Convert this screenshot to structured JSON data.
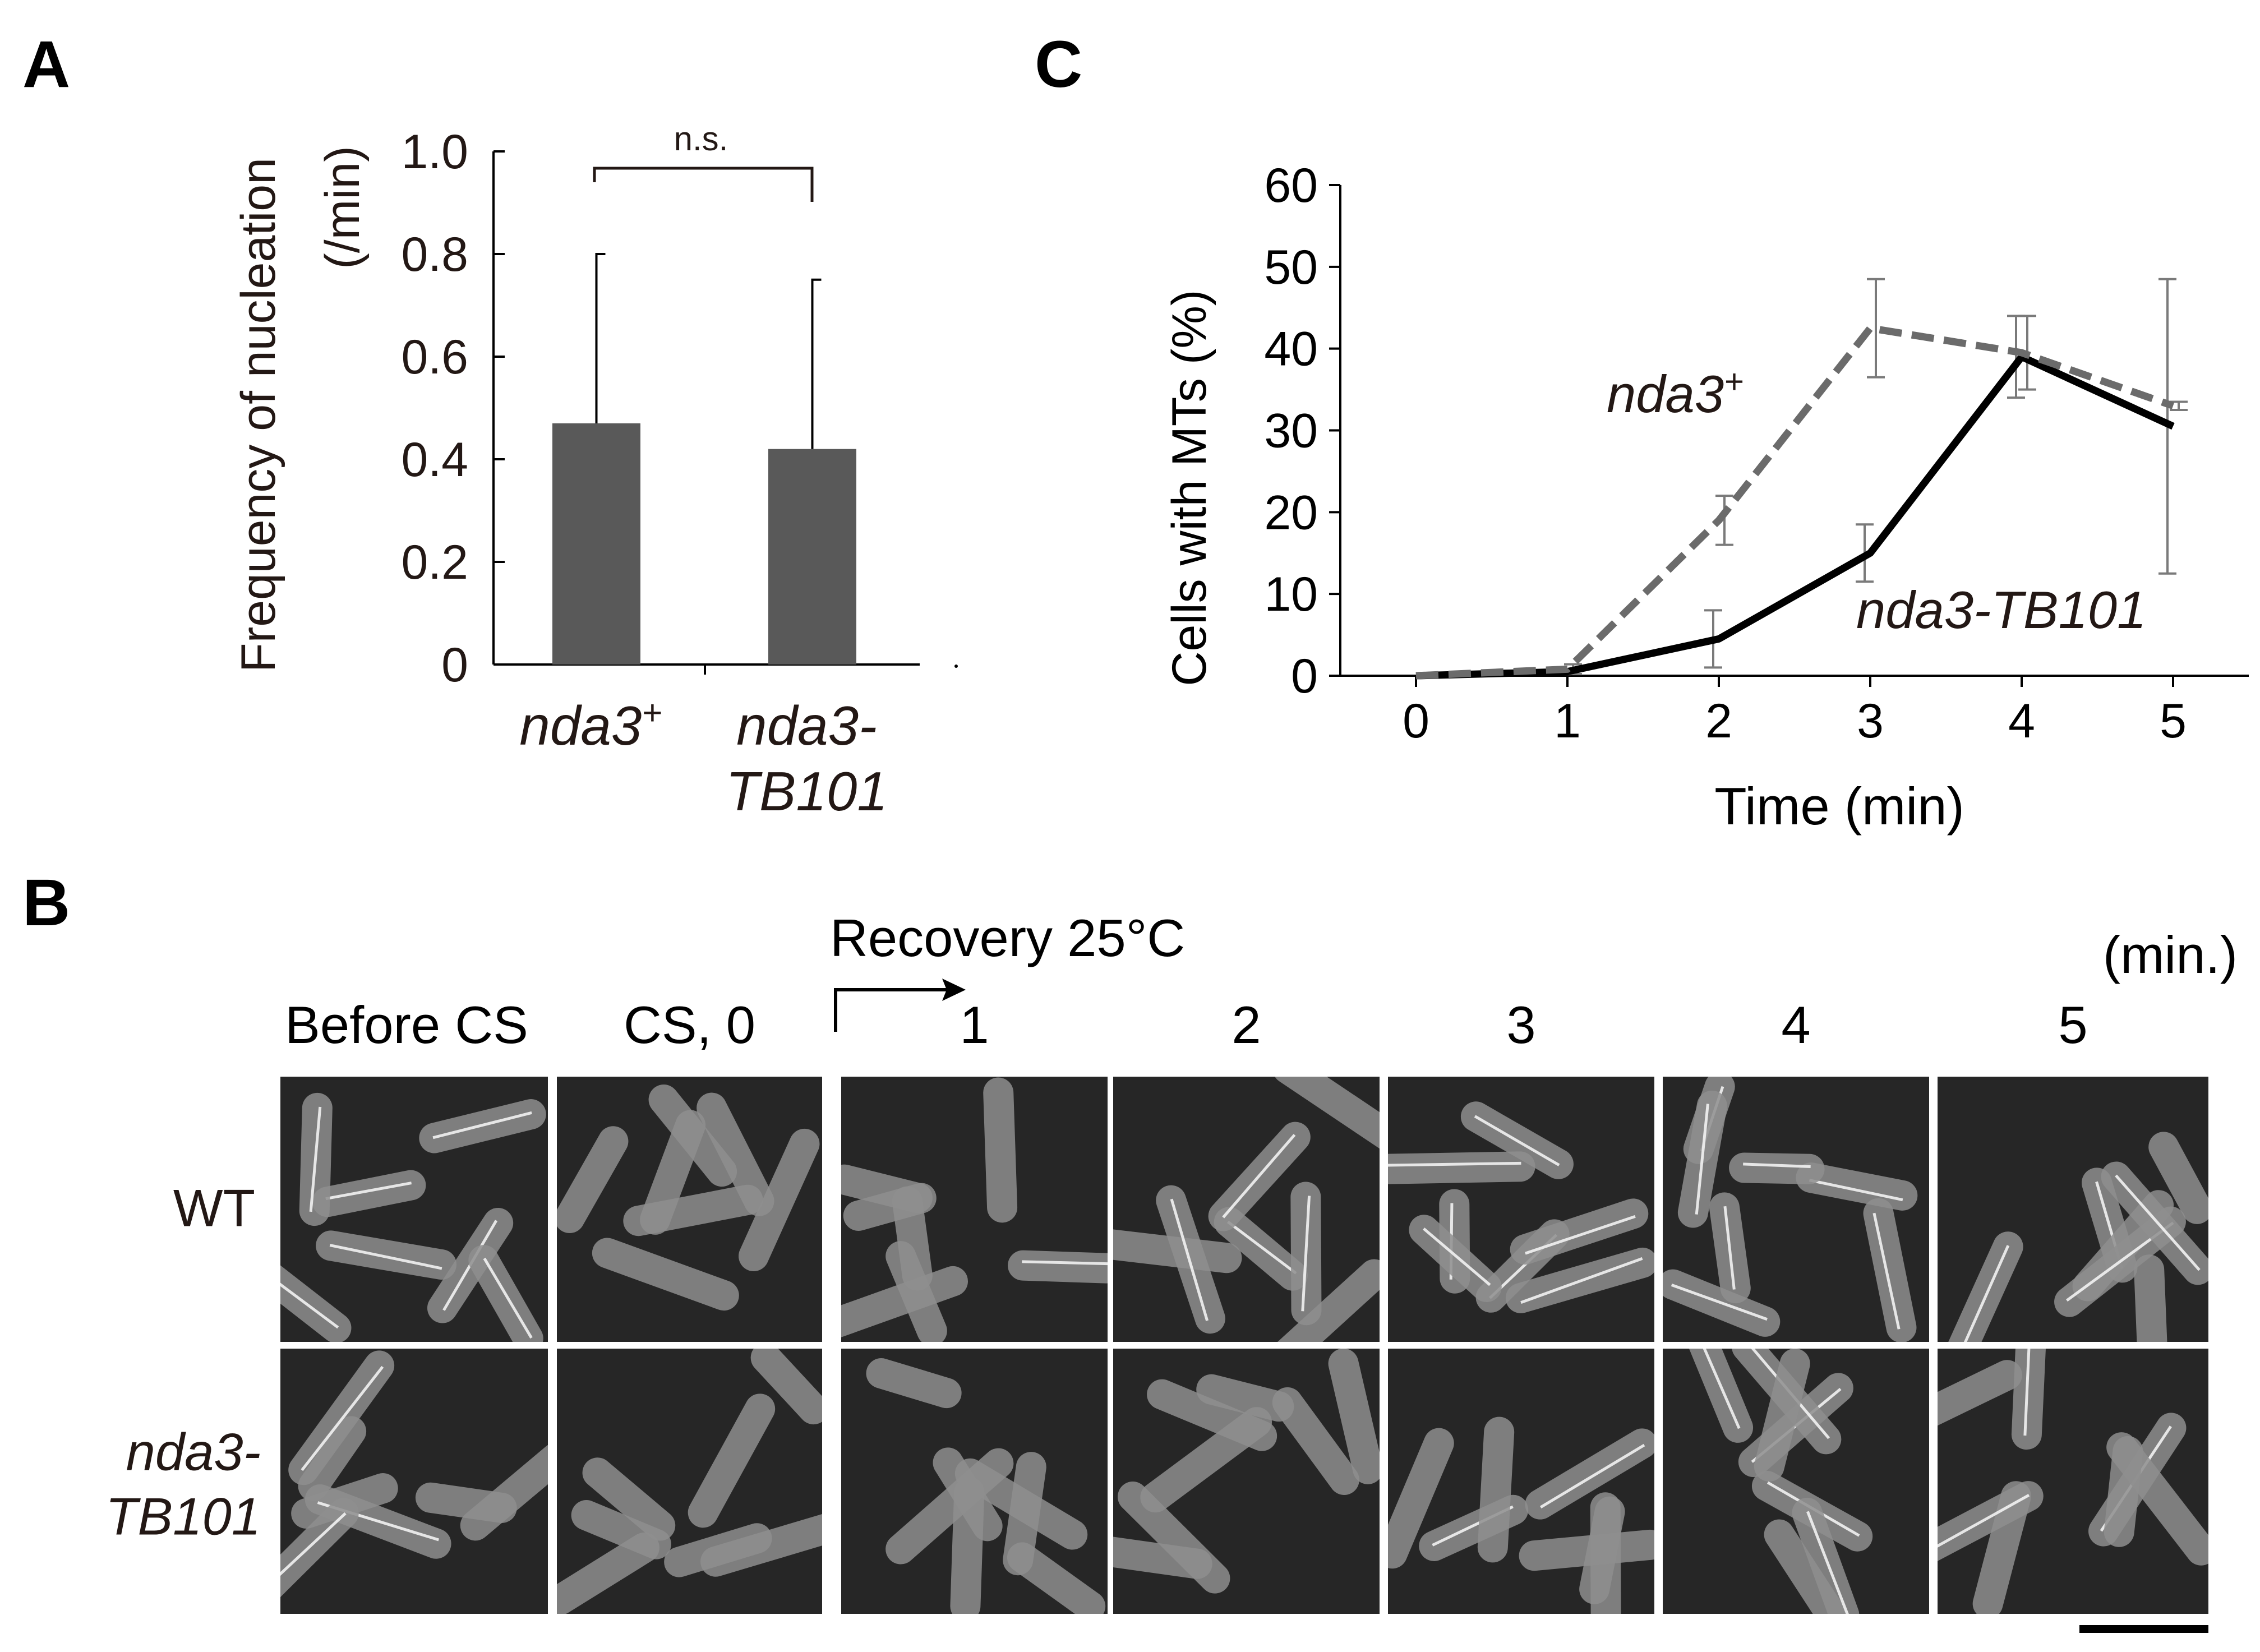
{
  "panel_letters": {
    "a": "A",
    "b": "B",
    "c": "C"
  },
  "colors": {
    "bar": "#595959",
    "text": "#231815",
    "series_wt": "#6b6b6b",
    "series_mut": "#000000",
    "errbar": "#7a7a7a",
    "cell_bg": "#262626",
    "cell_fill": "#8e8e8e",
    "cell_mt": "#f2f2f2"
  },
  "chart_data": [
    {
      "panel": "A",
      "type": "bar",
      "ylabel": "Frequency of nucleation",
      "ylabel_unit": "(/min)",
      "categories": [
        {
          "main": "nda3",
          "sup": "+",
          "line2": ""
        },
        {
          "main": "nda3-",
          "sup": "",
          "line2": "TB101"
        }
      ],
      "values": [
        0.47,
        0.42
      ],
      "errors": [
        0.33,
        0.33
      ],
      "ylim": [
        0,
        1.0
      ],
      "yticks": [
        "0",
        "0.2",
        "0.4",
        "0.6",
        "0.8",
        "1.0"
      ],
      "significance": "n.s.",
      "grid": false
    },
    {
      "panel": "C",
      "type": "line",
      "xlabel": "Time (min)",
      "ylabel": "Cells with MTs (%)",
      "x": [
        0,
        1,
        2,
        3,
        4,
        5
      ],
      "xlim": [
        -0.5,
        5.5
      ],
      "ylim": [
        0,
        60
      ],
      "yticks": [
        "0",
        "10",
        "20",
        "30",
        "40",
        "50",
        "60"
      ],
      "xticks": [
        "0",
        "1",
        "2",
        "3",
        "4",
        "5"
      ],
      "grid": false,
      "series": [
        {
          "name": "nda3",
          "name_sup": "+",
          "style": "dashed",
          "values": [
            0,
            0.8,
            19,
            42.5,
            39.5,
            33
          ],
          "errors": [
            0,
            0.6,
            3,
            6,
            4.5,
            0.5
          ]
        },
        {
          "name": "nda3-TB101",
          "name_sup": "",
          "style": "solid",
          "values": [
            0,
            0.5,
            4.5,
            15,
            39,
            30.5
          ],
          "errors": [
            0,
            0.3,
            3.5,
            3.5,
            5,
            18
          ]
        }
      ]
    }
  ],
  "panel_b": {
    "recovery_label": "Recovery 25°C",
    "unit_label": "(min.)",
    "column_labels": [
      "Before CS",
      "CS, 0",
      "1",
      "2",
      "3",
      "4",
      "5"
    ],
    "rows": [
      {
        "label": "WT",
        "label_line2": "",
        "italic": false
      },
      {
        "label": "nda3-",
        "label_line2": "TB101",
        "italic": true
      }
    ],
    "mt_signal": [
      [
        1,
        0,
        0.4,
        0.4,
        0.9,
        1,
        0.8
      ],
      [
        0.5,
        0,
        0,
        0,
        0.3,
        0.4,
        0.7
      ]
    ]
  }
}
